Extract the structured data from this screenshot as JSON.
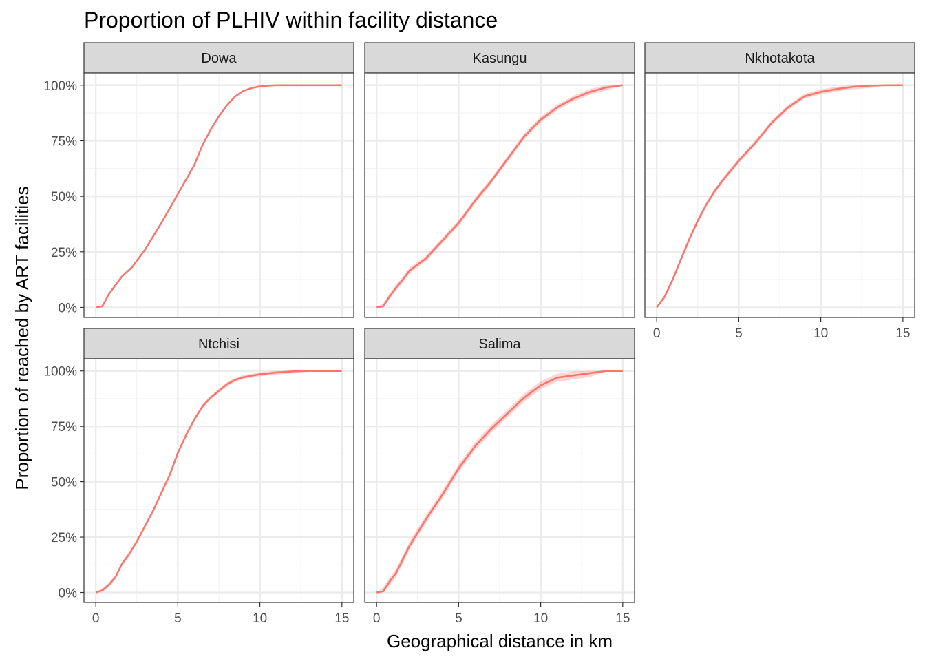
{
  "chart_data": {
    "type": "line",
    "title": "Proportion of PLHIV within facility distance",
    "xlabel": "Geographical distance in km",
    "ylabel": "Proportion of reached by ART facilities",
    "xlim": [
      0,
      15
    ],
    "ylim": [
      0,
      100
    ],
    "x_ticks": [
      0,
      5,
      10,
      15
    ],
    "x_tick_labels": [
      "0",
      "5",
      "10",
      "15"
    ],
    "y_ticks": [
      0,
      25,
      50,
      75,
      100
    ],
    "y_tick_labels": [
      "0%",
      "25%",
      "50%",
      "75%",
      "100%"
    ],
    "line_color": "#F8766D",
    "grid": true,
    "legend": "none",
    "facets": [
      {
        "label": "Dowa",
        "ribbon": 0.4,
        "points": [
          [
            0,
            0
          ],
          [
            0.4,
            0.5
          ],
          [
            0.8,
            6
          ],
          [
            1.2,
            10
          ],
          [
            1.6,
            14
          ],
          [
            2.2,
            18
          ],
          [
            3,
            26
          ],
          [
            4,
            38
          ],
          [
            5,
            51
          ],
          [
            6,
            64
          ],
          [
            6.5,
            73
          ],
          [
            7,
            80
          ],
          [
            7.5,
            86
          ],
          [
            8,
            91
          ],
          [
            8.5,
            95
          ],
          [
            9,
            97.5
          ],
          [
            9.5,
            98.7
          ],
          [
            10,
            99.5
          ],
          [
            10.5,
            99.8
          ],
          [
            11,
            100
          ],
          [
            15,
            100
          ]
        ]
      },
      {
        "label": "Kasungu",
        "ribbon": 1.3,
        "points": [
          [
            0,
            0
          ],
          [
            0.4,
            0.5
          ],
          [
            0.8,
            5
          ],
          [
            1.2,
            9
          ],
          [
            1.6,
            12.5
          ],
          [
            2,
            16.5
          ],
          [
            3,
            22
          ],
          [
            4,
            30
          ],
          [
            5,
            38
          ],
          [
            6,
            48
          ],
          [
            7,
            57
          ],
          [
            8,
            67
          ],
          [
            9,
            77
          ],
          [
            10,
            84.5
          ],
          [
            11,
            90
          ],
          [
            12,
            94
          ],
          [
            13,
            97
          ],
          [
            14,
            99
          ],
          [
            15,
            100
          ]
        ]
      },
      {
        "label": "Nkhotakota",
        "ribbon": 1.1,
        "points": [
          [
            0,
            0
          ],
          [
            0.5,
            5
          ],
          [
            1,
            13
          ],
          [
            1.5,
            22
          ],
          [
            2,
            31
          ],
          [
            2.5,
            39
          ],
          [
            3,
            46
          ],
          [
            3.5,
            52
          ],
          [
            4,
            57
          ],
          [
            5,
            66
          ],
          [
            6,
            74
          ],
          [
            7,
            83
          ],
          [
            8,
            90
          ],
          [
            9,
            95
          ],
          [
            10,
            97
          ],
          [
            11,
            98.3
          ],
          [
            12,
            99.3
          ],
          [
            13,
            99.8
          ],
          [
            14,
            100
          ],
          [
            15,
            100
          ]
        ]
      },
      {
        "label": "Ntchisi",
        "ribbon": 0.9,
        "points": [
          [
            0,
            0
          ],
          [
            0.4,
            1
          ],
          [
            0.8,
            3.5
          ],
          [
            1.2,
            7
          ],
          [
            1.6,
            13
          ],
          [
            2,
            17
          ],
          [
            2.5,
            23
          ],
          [
            3,
            30
          ],
          [
            3.5,
            37
          ],
          [
            4,
            45
          ],
          [
            4.5,
            53
          ],
          [
            5,
            63
          ],
          [
            5.5,
            71
          ],
          [
            6,
            78
          ],
          [
            6.5,
            84
          ],
          [
            7,
            88
          ],
          [
            7.5,
            91
          ],
          [
            8,
            94
          ],
          [
            8.5,
            96
          ],
          [
            9,
            97.2
          ],
          [
            10,
            98.5
          ],
          [
            11,
            99.3
          ],
          [
            12,
            99.8
          ],
          [
            13,
            100
          ],
          [
            15,
            100
          ]
        ]
      },
      {
        "label": "Salima",
        "ribbon": 1.8,
        "points": [
          [
            0,
            0
          ],
          [
            0.4,
            0.5
          ],
          [
            0.8,
            5
          ],
          [
            1.2,
            9
          ],
          [
            1.6,
            15
          ],
          [
            2,
            21
          ],
          [
            3,
            33
          ],
          [
            4,
            44
          ],
          [
            5,
            56
          ],
          [
            6,
            66
          ],
          [
            7,
            74
          ],
          [
            8,
            81
          ],
          [
            9,
            88
          ],
          [
            10,
            93.5
          ],
          [
            11,
            97
          ],
          [
            12,
            98
          ],
          [
            13,
            99
          ],
          [
            14,
            100
          ],
          [
            15,
            100
          ]
        ]
      }
    ]
  }
}
